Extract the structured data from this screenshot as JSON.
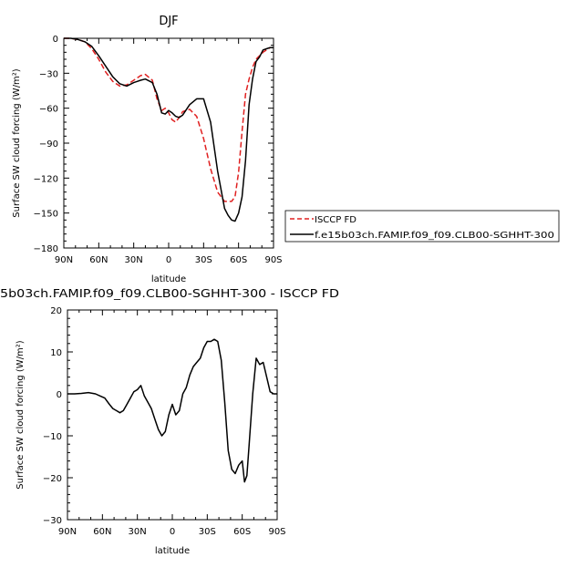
{
  "figure": {
    "title_top": "DJF",
    "title_bottom": "5b03ch.FAMIP.f09_f09.CLB00-SGHHT-300  -  ISCCP FD"
  },
  "chart_data": [
    {
      "type": "line",
      "title": "DJF",
      "xlabel": "latitude",
      "ylabel": "Surface SW cloud forcing (W/m²)",
      "xlim": [
        90,
        -90
      ],
      "ylim": [
        -180,
        0
      ],
      "x_tick_values": [
        90,
        60,
        30,
        0,
        -30,
        -60,
        -90
      ],
      "x_tick_labels": [
        "90N",
        "60N",
        "30N",
        "0",
        "30S",
        "60S",
        "90S"
      ],
      "y_tick_values": [
        0,
        -30,
        -60,
        -90,
        -120,
        -150,
        -180
      ],
      "y_tick_labels": [
        "0",
        "−30",
        "−60",
        "−90",
        "−120",
        "−150",
        "−180"
      ],
      "legend_position": "right",
      "series": [
        {
          "name": "ISCCP FD",
          "color": "#e02020",
          "dash": true,
          "x": [
            90,
            84,
            78,
            72,
            66,
            60,
            54,
            48,
            42,
            36,
            30,
            24,
            20,
            14,
            10,
            6,
            3,
            0,
            -3,
            -6,
            -9,
            -12,
            -18,
            -24,
            -30,
            -36,
            -42,
            -48,
            -54,
            -57,
            -60,
            -63,
            -66,
            -69,
            -72,
            -75,
            -78,
            -81,
            -84,
            -87,
            -90
          ],
          "y": [
            0,
            0,
            -1,
            -3,
            -9,
            -18,
            -29,
            -37,
            -41,
            -40,
            -36,
            -32,
            -31,
            -36,
            -52,
            -62,
            -60,
            -64,
            -70,
            -72,
            -68,
            -63,
            -61,
            -67,
            -86,
            -112,
            -132,
            -140,
            -140,
            -136,
            -115,
            -80,
            -48,
            -35,
            -25,
            -18,
            -15,
            -12,
            -10,
            -8,
            -8
          ]
        },
        {
          "name": "f.e15b03ch.FAMIP.f09_f09.CLB00-SGHHT-300",
          "color": "#000000",
          "dash": false,
          "x": [
            90,
            84,
            78,
            72,
            66,
            60,
            54,
            48,
            42,
            36,
            30,
            27,
            24,
            20,
            14,
            10,
            6,
            3,
            0,
            -3,
            -6,
            -9,
            -12,
            -18,
            -24,
            -30,
            -36,
            -42,
            -48,
            -51,
            -54,
            -57,
            -60,
            -63,
            -66,
            -69,
            -72,
            -75,
            -78,
            -81,
            -84,
            -87,
            -90
          ],
          "y": [
            0,
            0,
            -1,
            -3,
            -7,
            -15,
            -24,
            -33,
            -39,
            -41,
            -38,
            -37,
            -36,
            -35,
            -38,
            -48,
            -64,
            -65,
            -62,
            -64,
            -67,
            -68,
            -66,
            -57,
            -52,
            -52,
            -72,
            -114,
            -146,
            -152,
            -156,
            -157,
            -150,
            -136,
            -105,
            -57,
            -35,
            -20,
            -16,
            -10,
            -9,
            -8,
            -8
          ]
        }
      ]
    },
    {
      "type": "line",
      "title": "5b03ch.FAMIP.f09_f09.CLB00-SGHHT-300  -  ISCCP FD",
      "xlabel": "latitude",
      "ylabel": "Surface SW cloud forcing (W/m²)",
      "xlim": [
        90,
        -90
      ],
      "ylim": [
        -30,
        20
      ],
      "x_tick_values": [
        90,
        60,
        30,
        0,
        -30,
        -60,
        -90
      ],
      "x_tick_labels": [
        "90N",
        "60N",
        "30N",
        "0",
        "30S",
        "60S",
        "90S"
      ],
      "y_tick_values": [
        20,
        10,
        0,
        -10,
        -20,
        -30
      ],
      "y_tick_labels": [
        "20",
        "10",
        "0",
        "−10",
        "−20",
        "−30"
      ],
      "series": [
        {
          "color": "#000000",
          "dash": false,
          "x": [
            90,
            84,
            78,
            72,
            66,
            62,
            58,
            54,
            51,
            48,
            45,
            42,
            39,
            36,
            33,
            30,
            27,
            24,
            21,
            18,
            15,
            12,
            9,
            6,
            3,
            0,
            -3,
            -6,
            -9,
            -12,
            -15,
            -18,
            -21,
            -24,
            -27,
            -30,
            -33,
            -36,
            -39,
            -42,
            -45,
            -48,
            -51,
            -54,
            -57,
            -60,
            -62,
            -64,
            -66,
            -69,
            -72,
            -75,
            -78,
            -81,
            -84,
            -87,
            -90
          ],
          "y": [
            0,
            0,
            0.1,
            0.3,
            0,
            -0.5,
            -1,
            -2.5,
            -3.5,
            -4,
            -4.5,
            -4,
            -2.5,
            -1,
            0.5,
            1,
            2,
            -0.5,
            -2,
            -3.5,
            -6,
            -8.5,
            -10,
            -9,
            -5,
            -2.5,
            -5,
            -4,
            0,
            1.5,
            4.5,
            6.5,
            7.5,
            8.5,
            11,
            12.5,
            12.5,
            13,
            12.5,
            8,
            -2,
            -13.5,
            -18,
            -19,
            -17,
            -16,
            -21,
            -19.5,
            -12,
            0,
            8.5,
            7,
            7.5,
            4,
            0.5,
            0,
            0
          ]
        }
      ]
    }
  ],
  "legend": [
    {
      "label": "ISCCP FD",
      "color": "#e02020",
      "dash": true
    },
    {
      "label": "f.e15b03ch.FAMIP.f09_f09.CLB00-SGHHT-300",
      "color": "#000000",
      "dash": false
    }
  ]
}
